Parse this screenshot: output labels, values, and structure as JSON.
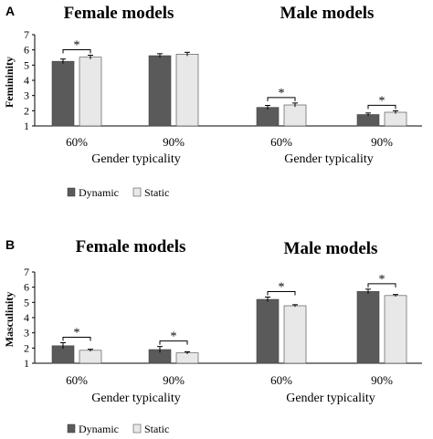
{
  "chart_data": [
    {
      "panel": "A",
      "type": "bar",
      "ylabel": "Femininity",
      "ylim": [
        1,
        7
      ],
      "yticks": [
        1,
        2,
        3,
        4,
        5,
        6,
        7
      ],
      "group_titles": [
        "Female models",
        "Male models"
      ],
      "xlabels": [
        "Gender typicality",
        "Gender typicality"
      ],
      "categories": [
        "60%",
        "90%",
        "60%",
        "90%"
      ],
      "series": [
        {
          "name": "Dynamic",
          "color": "#5a5a5a",
          "values": [
            5.25,
            5.62,
            2.22,
            1.75
          ],
          "errors": [
            0.15,
            0.13,
            0.13,
            0.1
          ]
        },
        {
          "name": "Static",
          "color": "#e8e8e8",
          "values": [
            5.52,
            5.72,
            2.38,
            1.9
          ],
          "errors": [
            0.13,
            0.12,
            0.13,
            0.1
          ]
        }
      ],
      "significance": [
        {
          "category": 0,
          "label": "*"
        },
        {
          "category": 2,
          "label": "*"
        },
        {
          "category": 3,
          "label": "*"
        }
      ],
      "legend": [
        "Dynamic",
        "Static"
      ],
      "grid": false
    },
    {
      "panel": "B",
      "type": "bar",
      "ylabel": "Masculinity",
      "ylim": [
        1,
        7
      ],
      "yticks": [
        1,
        2,
        3,
        4,
        5,
        6,
        7
      ],
      "group_titles": [
        "Female models",
        "Male models"
      ],
      "xlabels": [
        "Gender typicality",
        "Gender typicality"
      ],
      "categories": [
        "60%",
        "90%",
        "60%",
        "90%"
      ],
      "series": [
        {
          "name": "Dynamic",
          "color": "#5a5a5a",
          "values": [
            2.15,
            1.9,
            5.2,
            5.72
          ],
          "errors": [
            0.2,
            0.2,
            0.15,
            0.15
          ]
        },
        {
          "name": "Static",
          "color": "#e8e8e8",
          "values": [
            1.85,
            1.68,
            4.78,
            5.45
          ],
          "errors": [
            0.07,
            0.07,
            0.07,
            0.07
          ]
        }
      ],
      "significance": [
        {
          "category": 0,
          "label": "*"
        },
        {
          "category": 1,
          "label": "*"
        },
        {
          "category": 2,
          "label": "*"
        },
        {
          "category": 3,
          "label": "*"
        }
      ],
      "legend": [
        "Dynamic",
        "Static"
      ],
      "grid": false
    }
  ]
}
